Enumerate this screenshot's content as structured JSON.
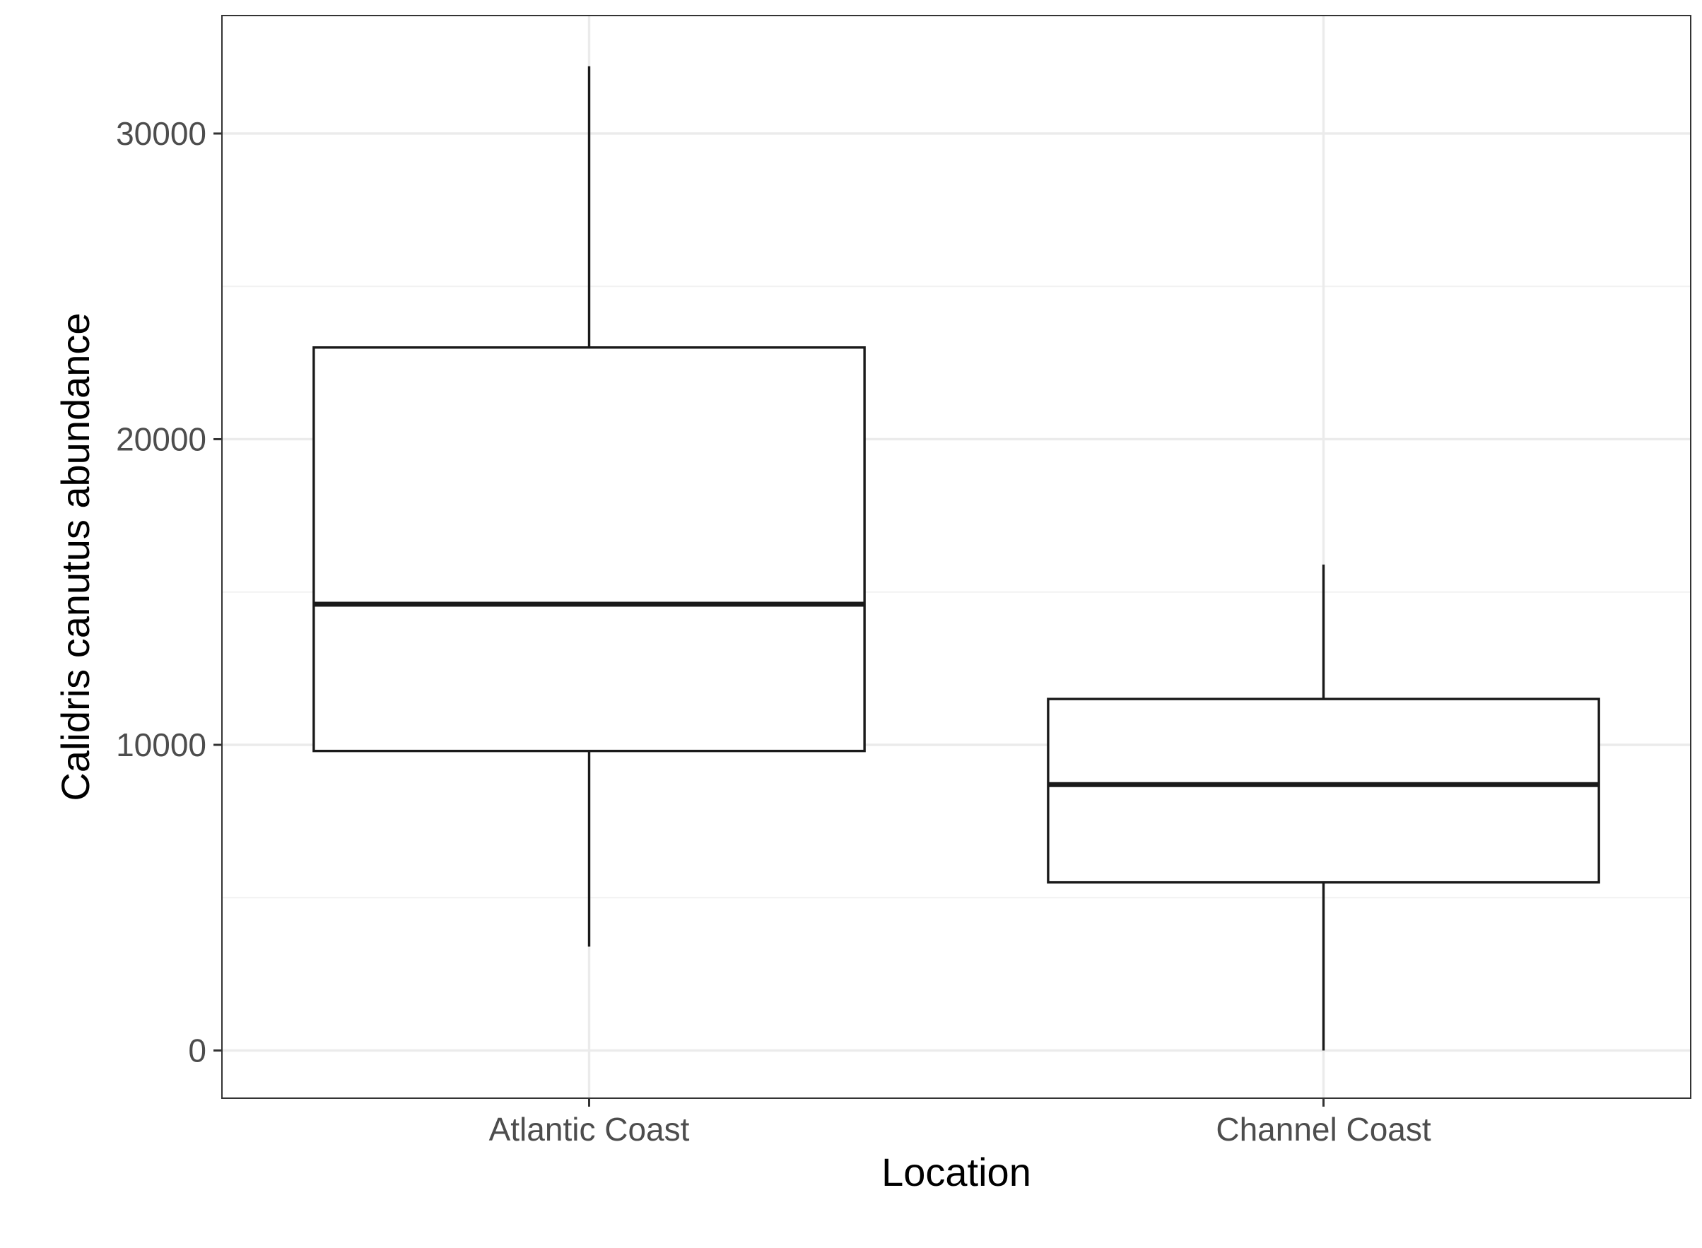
{
  "chart_data": {
    "type": "boxplot",
    "title": "",
    "xlabel": "Location",
    "ylabel": "Calidris canutus abundance",
    "categories": [
      "Atlantic Coast",
      "Channel Coast"
    ],
    "boxes": [
      {
        "category": "Atlantic Coast",
        "whisker_low": 3400,
        "q1": 9800,
        "median": 14600,
        "q3": 23000,
        "whisker_high": 32200
      },
      {
        "category": "Channel Coast",
        "whisker_low": 0,
        "q1": 5500,
        "median": 8700,
        "q3": 11500,
        "whisker_high": 15900
      }
    ],
    "ylim": [
      -1560,
      33860
    ],
    "yticks": [
      0,
      10000,
      20000,
      30000
    ],
    "yticks_minor": [
      5000,
      15000,
      25000
    ],
    "ytick_labels": [
      "0",
      "10000",
      "20000",
      "30000"
    ],
    "grid": true,
    "legend": "none",
    "colors": {
      "panel_border": "#333333",
      "grid_major": "#ebebeb",
      "grid_minor": "#f2f2f2",
      "box_stroke": "#1a1a1a",
      "box_fill": "#ffffff",
      "tick_text": "#4d4d4d",
      "title_text": "#000000"
    }
  }
}
